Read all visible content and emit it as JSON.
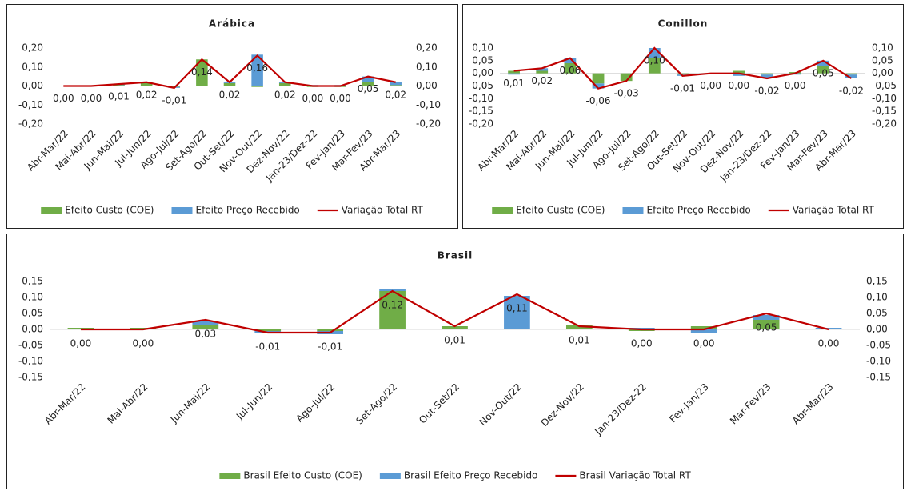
{
  "chart_data": [
    {
      "type": "bar",
      "title": "Arábica",
      "categories": [
        "Abr-Mar/22",
        "Mai-Abr/22",
        "Jun-Mai/22",
        "Jul-Jun/22",
        "Ago-Jul/22",
        "Set-Ago/22",
        "Out-Set/22",
        "Nov-Out/22",
        "Dez-Nov/22",
        "Jan-23/Dez-22",
        "Fev-Jan/23",
        "Mar-Fev/23",
        "Abr-Mar/23"
      ],
      "series": [
        {
          "name": "Efeito Custo (COE)",
          "color": "#70ad47",
          "values": [
            0,
            0,
            0.005,
            0.02,
            -0.005,
            0.14,
            0.015,
            -0.005,
            0.015,
            -0.005,
            -0.005,
            0.02,
            0.005
          ]
        },
        {
          "name": "Efeito Preço Recebido",
          "color": "#5b9bd5",
          "values": [
            0,
            0,
            0.005,
            0,
            -0.005,
            0,
            0.005,
            0.165,
            0.005,
            0.005,
            0.005,
            0.03,
            0.015
          ]
        },
        {
          "name": "Variação Total RT",
          "color": "#c00000",
          "type": "line",
          "axis": "y2",
          "values": [
            0,
            0,
            0.01,
            0.02,
            -0.01,
            0.14,
            0.02,
            0.16,
            0.02,
            0,
            0,
            0.05,
            0.02
          ],
          "value_labels": [
            "0,00",
            "0,00",
            "0,01",
            "0,02",
            "-0,01",
            "0,14",
            "0,02",
            "0,16",
            "0,02",
            "0,00",
            "0,00",
            "0,05",
            "0,02"
          ]
        }
      ],
      "ylim": [
        -0.2,
        0.2
      ],
      "yticks": [
        {
          "value": 0.2,
          "label": "0,20"
        },
        {
          "value": 0.1,
          "label": "0,10"
        },
        {
          "value": 0,
          "label": "0,00"
        },
        {
          "value": -0.1,
          "label": "-0,10"
        },
        {
          "value": -0.2,
          "label": "-0,20"
        }
      ],
      "y2lim": [
        -0.2,
        0.2
      ],
      "y2ticks": [
        {
          "value": 0.2,
          "label": "0,20"
        },
        {
          "value": 0.1,
          "label": "0,10"
        },
        {
          "value": 0,
          "label": "0,00"
        },
        {
          "value": -0.1,
          "label": "-0,10"
        },
        {
          "value": -0.2,
          "label": "-0,20"
        }
      ],
      "legend": "bottom"
    },
    {
      "type": "bar",
      "title": "Conillon",
      "categories": [
        "Abr-Mar/22",
        "Mai-Abr/22",
        "Jun-Mai/22",
        "Jul-Jun/22",
        "Ago-Jul/22",
        "Set-Ago/22",
        "Out-Set/22",
        "Nov-Out/22",
        "Dez-Nov/22",
        "Jan-23/Dez-22",
        "Fev-Jan/23",
        "Mar-Fev/23",
        "Abr-Mar/23"
      ],
      "series": [
        {
          "name": "Efeito Custo (COE)",
          "color": "#70ad47",
          "values": [
            0.01,
            0.01,
            0.04,
            -0.04,
            -0.03,
            0.06,
            -0.005,
            0,
            0.01,
            -0.005,
            0.005,
            0.03,
            -0.005
          ]
        },
        {
          "name": "Efeito Preço Recebido",
          "color": "#5b9bd5",
          "values": [
            -0.005,
            0.01,
            0.02,
            -0.02,
            0,
            0.04,
            -0.005,
            0,
            -0.01,
            -0.015,
            -0.005,
            0.02,
            -0.015
          ]
        },
        {
          "name": "Variação Total RT",
          "color": "#c00000",
          "type": "line",
          "axis": "y2",
          "values": [
            0.01,
            0.02,
            0.06,
            -0.06,
            -0.03,
            0.1,
            -0.01,
            0,
            0,
            -0.02,
            0,
            0.05,
            -0.02
          ],
          "value_labels": [
            "0,01",
            "0,02",
            "0,06",
            "-0,06",
            "-0,03",
            "0,10",
            "-0,01",
            "0,00",
            "0,00",
            "-0,02",
            "0,00",
            "0,05",
            "-0,02"
          ]
        }
      ],
      "ylim": [
        -0.2,
        0.1
      ],
      "yticks": [
        {
          "value": 0.1,
          "label": "0,10"
        },
        {
          "value": 0.05,
          "label": "0,05"
        },
        {
          "value": 0,
          "label": "0,00"
        },
        {
          "value": -0.05,
          "label": "-0,05"
        },
        {
          "value": -0.1,
          "label": "-0,10"
        },
        {
          "value": -0.15,
          "label": "-0,15"
        },
        {
          "value": -0.2,
          "label": "-0,20"
        }
      ],
      "y2lim": [
        -0.2,
        0.1
      ],
      "y2ticks": [
        {
          "value": 0.1,
          "label": "0,10"
        },
        {
          "value": 0.05,
          "label": "0,05"
        },
        {
          "value": 0,
          "label": "0,00"
        },
        {
          "value": -0.05,
          "label": "-0,05"
        },
        {
          "value": -0.1,
          "label": "-0,10"
        },
        {
          "value": -0.15,
          "label": "-0,15"
        },
        {
          "value": -0.2,
          "label": "-0,20"
        }
      ],
      "legend": "bottom"
    },
    {
      "type": "bar",
      "title": "Brasil",
      "categories": [
        "Abr-Mar/22",
        "Mai-Abr/22",
        "Jun-Mai/22",
        "Jul-Jun/22",
        "Ago-Jul/22",
        "Set-Ago/22",
        "Out-Set/22",
        "Nov-Out/22",
        "Dez-Nov/22",
        "Jan-23/Dez-22",
        "Fev-Jan/23",
        "Mar-Fev/23",
        "Abr-Mar/23"
      ],
      "series": [
        {
          "name": "Brasil Efeito Custo (COE)",
          "color": "#70ad47",
          "values": [
            0.005,
            0.005,
            0.015,
            -0.005,
            -0.005,
            0.12,
            0.01,
            0,
            0.015,
            -0.005,
            0.01,
            0.03,
            0
          ]
        },
        {
          "name": "Brasil Efeito Preço Recebido",
          "color": "#5b9bd5",
          "values": [
            0,
            0,
            0.01,
            -0.005,
            -0.01,
            0.005,
            0,
            0.105,
            0,
            0.005,
            -0.01,
            0.015,
            0.005
          ]
        },
        {
          "name": "Brasil Variação Total RT",
          "color": "#c00000",
          "type": "line",
          "axis": "y2",
          "values": [
            0,
            0,
            0.03,
            -0.01,
            -0.01,
            0.12,
            0.01,
            0.11,
            0.01,
            0,
            0,
            0.05,
            0
          ],
          "value_labels": [
            "0,00",
            "0,00",
            "0,03",
            "-0,01",
            "-0,01",
            "0,12",
            "0,01",
            "0,11",
            "0,01",
            "0,00",
            "0,00",
            "0,05",
            "0,00"
          ]
        }
      ],
      "ylim": [
        -0.15,
        0.15
      ],
      "yticks": [
        {
          "value": 0.15,
          "label": "0,15"
        },
        {
          "value": 0.1,
          "label": "0,10"
        },
        {
          "value": 0.05,
          "label": "0,05"
        },
        {
          "value": 0,
          "label": "0,00"
        },
        {
          "value": -0.05,
          "label": "-0,05"
        },
        {
          "value": -0.1,
          "label": "-0,10"
        },
        {
          "value": -0.15,
          "label": "-0,15"
        }
      ],
      "y2lim": [
        -0.15,
        0.15
      ],
      "y2ticks": [
        {
          "value": 0.15,
          "label": "0,15"
        },
        {
          "value": 0.1,
          "label": "0,10"
        },
        {
          "value": 0.05,
          "label": "0,05"
        },
        {
          "value": 0,
          "label": "0,00"
        },
        {
          "value": -0.05,
          "label": "-0,05"
        },
        {
          "value": -0.1,
          "label": "-0,10"
        },
        {
          "value": -0.15,
          "label": "-0,15"
        }
      ],
      "legend": "bottom"
    }
  ]
}
